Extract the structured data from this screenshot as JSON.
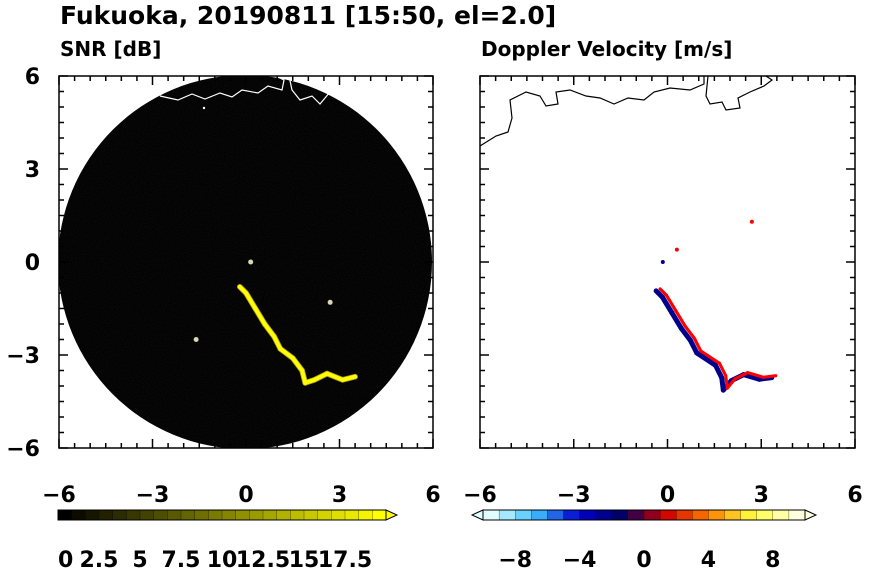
{
  "figure": {
    "title": "Fukuoka, 20190811 [15:50, el=2.0]"
  },
  "chart_data": [
    {
      "type": "heatmap",
      "title": "SNR [dB]",
      "xlabel": "",
      "ylabel": "",
      "xlim": [
        -6,
        6
      ],
      "ylim": [
        -6,
        6
      ],
      "x_ticks": [
        "−6",
        "−3",
        "0",
        "3",
        "6"
      ],
      "y_ticks": [
        "6",
        "3",
        "0",
        "−3",
        "−6"
      ],
      "x_tick_values": [
        -6,
        -3,
        0,
        3,
        6
      ],
      "y_tick_values": [
        6,
        3,
        0,
        -3,
        -6
      ],
      "radar_range": 6,
      "background_color": "#000000",
      "coastline_color": "#ffffff",
      "colorbar": {
        "ticks": [
          "0",
          "2.5",
          "5",
          "7.5",
          "10",
          "12.5",
          "15",
          "17.5"
        ],
        "min": 0,
        "max": 20,
        "levels": 24,
        "extend": "max",
        "colors": [
          "#000000",
          "#ffff00"
        ]
      },
      "echo_color": "#ffff00",
      "echo_band": [
        [
          -0.2,
          -0.8
        ],
        [
          0.0,
          -1.0
        ],
        [
          0.3,
          -1.5
        ],
        [
          0.6,
          -2.0
        ],
        [
          0.9,
          -2.4
        ],
        [
          1.1,
          -2.8
        ],
        [
          1.5,
          -3.1
        ],
        [
          1.8,
          -3.5
        ],
        [
          1.9,
          -3.9
        ],
        [
          2.2,
          -3.8
        ],
        [
          2.6,
          -3.6
        ],
        [
          3.1,
          -3.8
        ],
        [
          3.5,
          -3.7
        ]
      ],
      "echo_width": 0.18,
      "extra_echoes": [
        [
          2.7,
          -1.3
        ],
        [
          -1.6,
          -2.5
        ],
        [
          0.15,
          0.0
        ]
      ]
    },
    {
      "type": "heatmap",
      "title": "Doppler Velocity [m/s]",
      "xlabel": "",
      "ylabel": "",
      "xlim": [
        -6,
        6
      ],
      "ylim": [
        -6,
        6
      ],
      "x_ticks": [
        "−6",
        "−3",
        "0",
        "3",
        "6"
      ],
      "y_ticks": [],
      "x_tick_values": [
        -6,
        -3,
        0,
        3,
        6
      ],
      "coastline_color": "#000000",
      "colorbar": {
        "ticks": [
          "−8",
          "−4",
          "0",
          "4",
          "8"
        ],
        "tick_values": [
          -8,
          -4,
          0,
          4,
          8
        ],
        "min": -10,
        "max": 10,
        "levels": 20,
        "extend": "both",
        "colors": [
          "#e0ffff",
          "#40c0ff",
          "#0000cd",
          "#000060",
          "#d00000",
          "#ff8000",
          "#ffff40",
          "#ffffe0"
        ]
      },
      "echo_band": [
        [
          -0.3,
          -0.9
        ],
        [
          -0.1,
          -1.1
        ],
        [
          0.2,
          -1.6
        ],
        [
          0.5,
          -2.1
        ],
        [
          0.8,
          -2.5
        ],
        [
          1.0,
          -2.9
        ],
        [
          1.6,
          -3.3
        ],
        [
          1.8,
          -3.7
        ],
        [
          1.85,
          -4.1
        ],
        [
          2.1,
          -3.8
        ],
        [
          2.5,
          -3.6
        ],
        [
          3.0,
          -3.75
        ],
        [
          3.4,
          -3.7
        ]
      ],
      "echo_pos_color": "#ff0000",
      "echo_neg_color": "#00008b",
      "extra_echoes": [
        [
          2.7,
          1.3
        ],
        [
          -0.15,
          0.0
        ],
        [
          0.3,
          0.4
        ]
      ]
    }
  ]
}
